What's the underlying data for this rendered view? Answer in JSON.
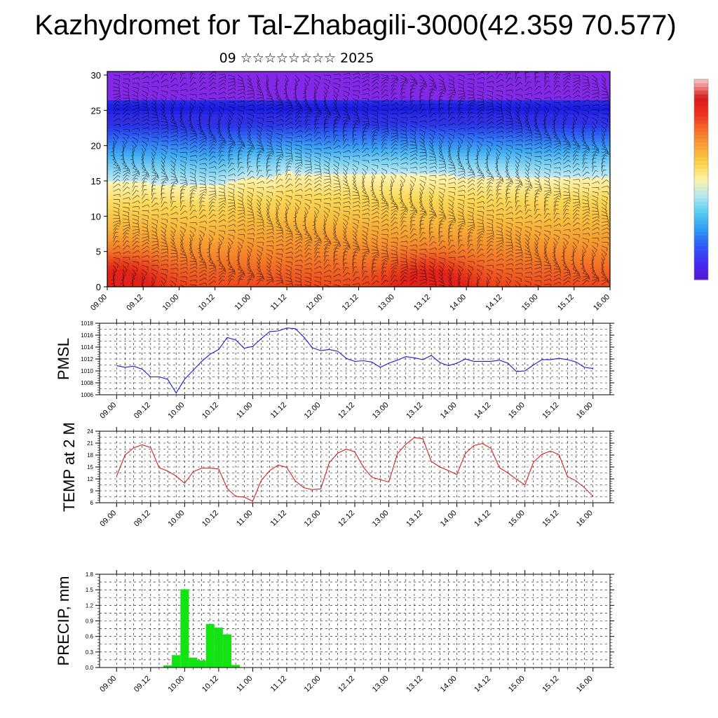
{
  "header": {
    "title": "Kazhydromet for Tal-Zhabagili-3000(42.359 70.577)",
    "subtitle": "09 ☆☆☆☆☆☆☆☆ 2025"
  },
  "time_ticks": [
    "09.00",
    "09.12",
    "10.00",
    "10.12",
    "11.00",
    "11.12",
    "12.00",
    "12.12",
    "13.00",
    "13.12",
    "14.00",
    "14.12",
    "15.00",
    "15.12",
    "16.00"
  ],
  "chart_data": [
    {
      "type": "heatmap",
      "id": "profile",
      "ylabel": "",
      "ylim": [
        0,
        30.5
      ],
      "yticks": [
        0,
        5,
        10,
        15,
        20,
        25,
        30
      ],
      "xlim": [
        0,
        168
      ],
      "colorbar_colors": [
        "#5a16d8",
        "#3f2ef2",
        "#2d5cf6",
        "#2e9cf5",
        "#53cdf0",
        "#b5e6f3",
        "#fff3a6",
        "#fad24b",
        "#f8a436",
        "#f5702a",
        "#ee3220",
        "#d51c18",
        "#f6b9b7"
      ],
      "boundary_levels": [
        [
          0,
          14.8
        ],
        [
          12,
          14.8
        ],
        [
          24,
          14.6
        ],
        [
          36,
          14.3
        ],
        [
          48,
          15.8
        ],
        [
          54,
          15.4
        ],
        [
          60,
          16.3
        ],
        [
          72,
          15.9
        ],
        [
          96,
          16.0
        ],
        [
          120,
          15.7
        ],
        [
          144,
          15.5
        ],
        [
          168,
          15.7
        ]
      ],
      "blue_band_km": 25.3,
      "warm_cores": [
        {
          "x": 4,
          "y": 0.8
        },
        {
          "x": 108,
          "y": 0.5
        }
      ],
      "grid": true,
      "legend": "right"
    },
    {
      "type": "line",
      "id": "pmsl",
      "ylabel": "PMSL",
      "ylim": [
        1006,
        1018
      ],
      "yticks": [
        1006,
        1008,
        1010,
        1012,
        1014,
        1016,
        1018
      ],
      "xlim": [
        -6,
        174
      ],
      "color": "#1a1adb",
      "x": [
        0,
        3,
        6,
        9,
        12,
        15,
        18,
        21,
        24,
        27,
        30,
        33,
        36,
        39,
        42,
        45,
        48,
        51,
        54,
        57,
        60,
        63,
        66,
        69,
        72,
        75,
        78,
        81,
        84,
        87,
        90,
        93,
        96,
        99,
        102,
        105,
        108,
        111,
        114,
        117,
        120,
        123,
        126,
        129,
        132,
        135,
        138,
        141,
        144,
        147,
        150,
        153,
        156,
        159,
        162,
        165,
        168
      ],
      "values": [
        1010.9,
        1010.6,
        1010.8,
        1010.3,
        1009.0,
        1009.0,
        1008.6,
        1006.3,
        1008.6,
        1010.1,
        1011.6,
        1012.8,
        1013.6,
        1015.6,
        1015.2,
        1013.8,
        1014.1,
        1015.4,
        1016.6,
        1016.7,
        1017.2,
        1017.1,
        1015.7,
        1013.9,
        1013.4,
        1013.6,
        1013.3,
        1012.1,
        1011.6,
        1011.7,
        1011.5,
        1010.6,
        1011.3,
        1011.8,
        1012.4,
        1012.2,
        1011.9,
        1012.6,
        1011.4,
        1010.9,
        1011.3,
        1012.0,
        1011.6,
        1011.6,
        1011.6,
        1011.8,
        1011.3,
        1009.9,
        1010.0,
        1011.0,
        1011.9,
        1011.9,
        1012.1,
        1011.9,
        1011.5,
        1010.6,
        1010.4
      ],
      "grid": true
    },
    {
      "type": "line",
      "id": "temp",
      "ylabel": "TEMP at 2 M",
      "ylim": [
        6,
        24
      ],
      "yticks": [
        6,
        9,
        12,
        15,
        18,
        21,
        24
      ],
      "xlim": [
        -6,
        174
      ],
      "color": "#dc1e1e",
      "x": [
        0,
        3,
        6,
        9,
        12,
        15,
        18,
        21,
        24,
        27,
        30,
        33,
        36,
        39,
        42,
        45,
        48,
        51,
        54,
        57,
        60,
        63,
        66,
        69,
        72,
        75,
        78,
        81,
        84,
        87,
        90,
        93,
        96,
        99,
        102,
        105,
        108,
        111,
        114,
        117,
        120,
        123,
        126,
        129,
        132,
        135,
        138,
        141,
        144,
        147,
        150,
        153,
        156,
        159,
        162,
        165,
        168
      ],
      "values": [
        12.7,
        18.0,
        19.8,
        20.6,
        19.9,
        14.8,
        14.0,
        12.7,
        10.9,
        13.8,
        14.7,
        14.7,
        14.5,
        9.6,
        7.6,
        7.4,
        6.4,
        11.6,
        14.1,
        15.5,
        14.9,
        11.5,
        9.8,
        9.3,
        9.5,
        16.1,
        18.5,
        19.5,
        18.8,
        15.0,
        12.4,
        11.8,
        11.2,
        18.3,
        20.7,
        22.4,
        22.1,
        16.4,
        15.0,
        14.1,
        13.1,
        18.4,
        20.4,
        20.9,
        19.7,
        14.8,
        13.5,
        11.9,
        10.5,
        16.2,
        18.2,
        19.0,
        18.1,
        12.6,
        11.5,
        9.8,
        7.6
      ],
      "grid": true
    },
    {
      "type": "bar",
      "id": "precip",
      "ylabel": "PRECIP, mm",
      "ylim": [
        0,
        1.8
      ],
      "yticks": [
        "0.0",
        "0.3",
        "0.6",
        "0.9",
        "1.2",
        "1.5",
        "1.8"
      ],
      "xlim": [
        -6,
        174
      ],
      "color": "#13e313",
      "x": [
        18,
        21,
        24,
        27,
        30,
        33,
        36,
        39,
        42
      ],
      "values": [
        0.04,
        0.24,
        1.51,
        0.19,
        0.14,
        0.84,
        0.77,
        0.64,
        0.05
      ],
      "grid": true
    }
  ]
}
